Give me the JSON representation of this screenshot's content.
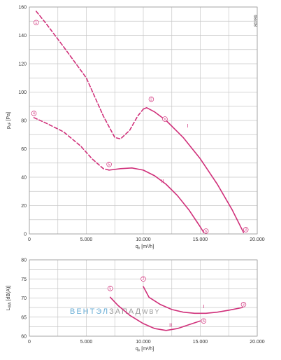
{
  "figure_id": "80289",
  "watermark": {
    "part1": "ВЕНТЭЛ",
    "part2": "ЗАПАД",
    "part3": "WBY",
    "color1": "#6aaed6",
    "color2": "#9a9a9a"
  },
  "colors": {
    "curve": "#d0307a",
    "grid": "#c8c8c8",
    "text": "#333333"
  },
  "chart_data": [
    {
      "type": "line",
      "xlabel": "q",
      "xlabel_sub": "v",
      "xlabel_unit": "[m³/h]",
      "ylabel": "p",
      "ylabel_sub": "sF",
      "ylabel_unit": "[Pa]",
      "xlim": [
        0,
        20000
      ],
      "ylim": [
        0,
        160
      ],
      "x_ticks": [
        0,
        5000,
        10000,
        15000,
        20000
      ],
      "x_tick_labels": [
        "0",
        "5.000",
        "10.000",
        "15.000",
        "20.000"
      ],
      "y_ticks": [
        0,
        20,
        40,
        60,
        80,
        100,
        120,
        140,
        160
      ],
      "y_tick_labels": [
        "0",
        "20",
        "40",
        "60",
        "80",
        "100",
        "120",
        "140",
        "160"
      ],
      "grid": true,
      "series": [
        {
          "name": "I",
          "style": "dashed",
          "x": [
            600,
            1500,
            3000,
            5000,
            6500,
            7500,
            8000,
            8800,
            9500,
            10000
          ],
          "y": [
            157,
            148,
            132,
            110,
            83,
            68,
            67,
            73,
            83,
            88
          ]
        },
        {
          "name": "I",
          "style": "solid",
          "x": [
            10000,
            10300,
            11000,
            12000,
            13500,
            15000,
            16500,
            17800,
            18800
          ],
          "y": [
            88,
            89,
            86,
            80,
            68,
            53,
            35,
            17,
            1
          ]
        },
        {
          "name": "II",
          "style": "dashed",
          "x": [
            400,
            1500,
            3000,
            4500,
            5500,
            6500,
            7000
          ],
          "y": [
            82,
            78,
            72,
            62,
            53,
            46,
            45
          ]
        },
        {
          "name": "II",
          "style": "solid",
          "x": [
            7000,
            8000,
            9000,
            10000,
            11000,
            12000,
            13000,
            14000,
            15000,
            15300
          ],
          "y": [
            45,
            46,
            46.5,
            45,
            41,
            35,
            27,
            17,
            5,
            1
          ]
        }
      ],
      "labels": [
        {
          "text": "I",
          "x": 13900,
          "y": 75
        },
        {
          "text": "II",
          "x": 11700,
          "y": 36
        }
      ],
      "markers": [
        {
          "text": "1",
          "x": 600,
          "y": 149
        },
        {
          "text": "4",
          "x": 400,
          "y": 85
        },
        {
          "text": "2",
          "x": 10700,
          "y": 95
        },
        {
          "text": "5",
          "x": 7000,
          "y": 49
        },
        {
          "text": "n",
          "x": 11900,
          "y": 81
        },
        {
          "text": "6",
          "x": 15500,
          "y": 2
        },
        {
          "text": "3",
          "x": 19000,
          "y": 3
        }
      ]
    },
    {
      "type": "line",
      "xlabel": "q",
      "xlabel_sub": "v",
      "xlabel_unit": "[m³/h]",
      "ylabel": "L",
      "ylabel_sub": "WA",
      "ylabel_unit": "[dB(A)]",
      "xlim": [
        0,
        20000
      ],
      "ylim": [
        60,
        80
      ],
      "x_ticks": [
        0,
        5000,
        10000,
        15000,
        20000
      ],
      "x_tick_labels": [
        "0",
        "5.000",
        "10.000",
        "15.000",
        "20.000"
      ],
      "y_ticks": [
        60,
        65,
        70,
        75,
        80
      ],
      "y_tick_labels": [
        "60",
        "65",
        "70",
        "75",
        "80"
      ],
      "grid": true,
      "series": [
        {
          "name": "I",
          "style": "solid",
          "x": [
            10000,
            10500,
            11500,
            12500,
            13500,
            14500,
            15500,
            16500,
            17500,
            18700
          ],
          "y": [
            73,
            70.2,
            68.3,
            67,
            66.3,
            66,
            66,
            66.3,
            66.8,
            67.5
          ]
        },
        {
          "name": "II",
          "style": "solid",
          "x": [
            7100,
            7800,
            8800,
            10000,
            11000,
            12000,
            13000,
            14000,
            15000
          ],
          "y": [
            70.2,
            68,
            65.5,
            63.3,
            62,
            61.5,
            62,
            63,
            64
          ]
        }
      ],
      "labels": [
        {
          "text": "I",
          "x": 15300,
          "y": 67.3
        },
        {
          "text": "II",
          "x": 12400,
          "y": 62.5
        }
      ],
      "markers": [
        {
          "text": "5",
          "x": 7100,
          "y": 72.5
        },
        {
          "text": "2",
          "x": 10000,
          "y": 75
        },
        {
          "text": "3",
          "x": 18800,
          "y": 68.3
        },
        {
          "text": "6",
          "x": 15300,
          "y": 64
        }
      ]
    }
  ]
}
